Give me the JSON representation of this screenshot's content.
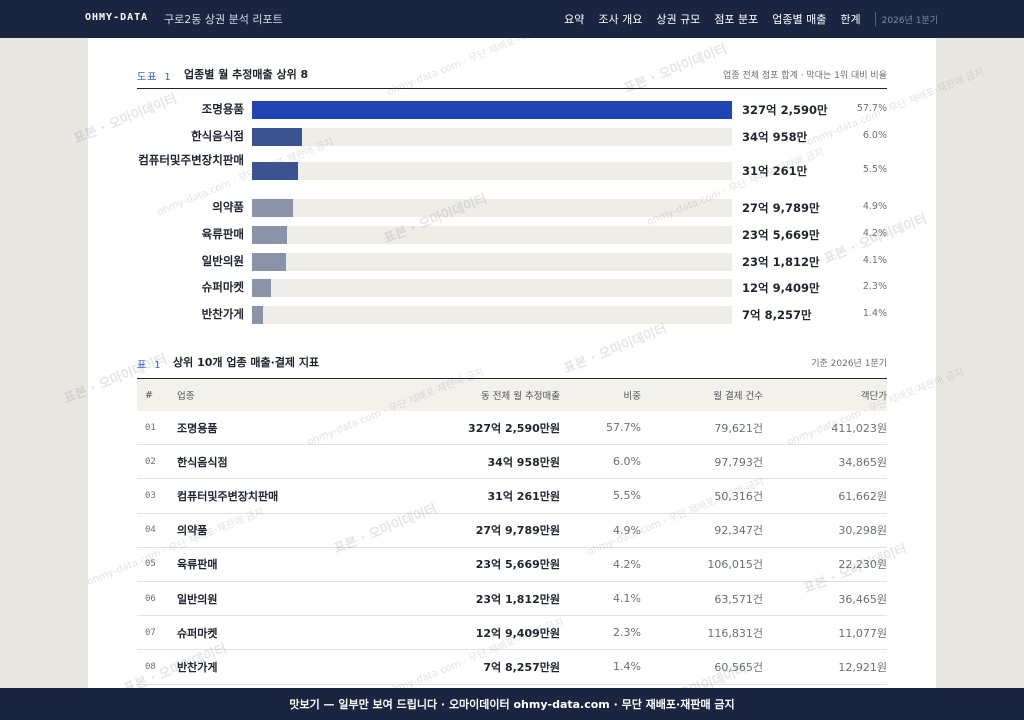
{
  "nav": {
    "brand": "OHMY-DATA",
    "subtitle": "구로2동 상권 분석 리포트",
    "links": [
      "요약",
      "조사 개요",
      "상권 규모",
      "점포 분포",
      "업종별 매출",
      "한계"
    ],
    "date": "2026년 1분기"
  },
  "figure": {
    "label": "도표 1",
    "title": "업종별 월 추정매출 상위 8",
    "note": "업종 전체 점포 합계 · 막대는 1위 대비 비율"
  },
  "chart_data": {
    "type": "bar",
    "orientation": "horizontal",
    "title": "업종별 월 추정매출 상위 8",
    "categories": [
      "조명용품",
      "한식음식점",
      "컴퓨터및주변장치판매",
      "의약품",
      "육류판매",
      "일반의원",
      "슈퍼마켓",
      "반찬가게"
    ],
    "values": [
      3272590,
      340958,
      310261,
      279789,
      235669,
      231812,
      129409,
      78257
    ],
    "value_labels": [
      "327억 2,590만",
      "34억 958만",
      "31억 261만",
      "27억 9,789만",
      "23억 5,669만",
      "23억 1,812만",
      "12억 9,409만",
      "7억 8,257만"
    ],
    "share_labels": [
      "57.7%",
      "6.0%",
      "5.5%",
      "4.9%",
      "4.2%",
      "4.1%",
      "2.3%",
      "1.4%"
    ],
    "colors": [
      "#1f45b5",
      "#3c5391",
      "#3c5391",
      "#8a93a8",
      "#8a93a8",
      "#8a93a8",
      "#8a93a8",
      "#8a93a8"
    ],
    "track_color": "#efede7"
  },
  "table": {
    "label": "표 1",
    "title": "상위 10개 업종 매출·결제 지표",
    "note": "기준 2026년 1분기",
    "headers": [
      "#",
      "업종",
      "동 전체 월 추정매출",
      "비중",
      "월 결제 건수",
      "객단가"
    ],
    "rows": [
      [
        "01",
        "조명용품",
        "327억 2,590만원",
        "57.7%",
        "79,621건",
        "411,023원"
      ],
      [
        "02",
        "한식음식점",
        "34억 958만원",
        "6.0%",
        "97,793건",
        "34,865원"
      ],
      [
        "03",
        "컴퓨터및주변장치판매",
        "31억 261만원",
        "5.5%",
        "50,316건",
        "61,662원"
      ],
      [
        "04",
        "의약품",
        "27억 9,789만원",
        "4.9%",
        "92,347건",
        "30,298원"
      ],
      [
        "05",
        "육류판매",
        "23억 5,669만원",
        "4.2%",
        "106,015건",
        "22,230원"
      ],
      [
        "06",
        "일반의원",
        "23억 1,812만원",
        "4.1%",
        "63,571건",
        "36,465원"
      ],
      [
        "07",
        "슈퍼마켓",
        "12억 9,409만원",
        "2.3%",
        "116,831건",
        "11,077원"
      ],
      [
        "08",
        "반찬가게",
        "7억 8,257만원",
        "1.4%",
        "60,565건",
        "12,921원"
      ]
    ]
  },
  "watermark": {
    "primary": "표본 · 오마이데이터",
    "secondary": "ohmy-data.com · 무단 재배포·재판매 금지"
  },
  "footer": {
    "text": "맛보기 — 일부만 보여 드립니다 · 오마이데이터 ohmy-data.com · 무단 재배포·재판매 금지"
  }
}
